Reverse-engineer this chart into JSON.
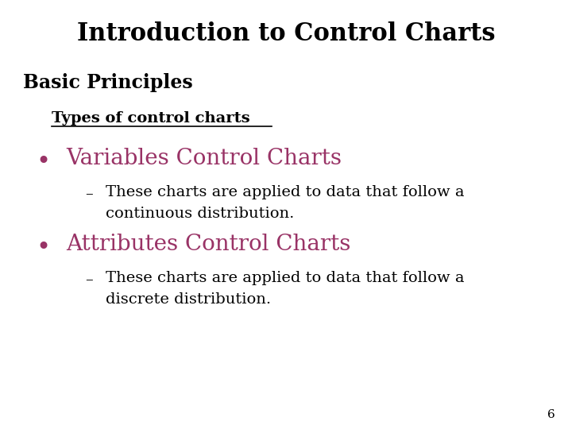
{
  "title": "Introduction to Control Charts",
  "title_fontsize": 22,
  "title_color": "#000000",
  "background_color": "#ffffff",
  "section_label": "Basic Principles",
  "section_fontsize": 17,
  "subsection_label": "Types of control charts",
  "subsection_fontsize": 14,
  "bullet1_label": "Variables Control Charts",
  "bullet1_fontsize": 20,
  "bullet1_color": "#993366",
  "sub_bullet1_line1": "These charts are applied to data that follow a",
  "sub_bullet1_line2": "continuous distribution.",
  "sub_bullet1_fontsize": 14,
  "sub_bullet1_color": "#000000",
  "bullet2_label": "Attributes Control Charts",
  "bullet2_fontsize": 20,
  "bullet2_color": "#993366",
  "sub_bullet2_line1": "These charts are applied to data that follow a",
  "sub_bullet2_line2": "discrete distribution.",
  "sub_bullet2_fontsize": 14,
  "sub_bullet2_color": "#000000",
  "page_number": "6",
  "page_number_fontsize": 11,
  "page_number_color": "#000000"
}
